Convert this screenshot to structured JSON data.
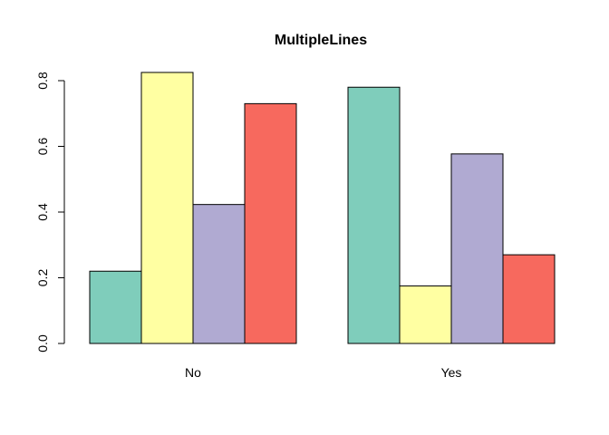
{
  "chart_data": {
    "type": "bar",
    "title": "MultipleLines",
    "xlabel": "",
    "ylabel": "",
    "categories": [
      "No",
      "Yes"
    ],
    "series": [
      {
        "values": [
          0.22,
          0.78
        ],
        "color": "#7FCDBB"
      },
      {
        "values": [
          0.825,
          0.175
        ],
        "color": "#FFFFA2"
      },
      {
        "values": [
          0.423,
          0.577
        ],
        "color": "#B0AAD2"
      },
      {
        "values": [
          0.73,
          0.27
        ],
        "color": "#F7695E"
      }
    ],
    "yticks": [
      "0.0",
      "0.2",
      "0.4",
      "0.6",
      "0.8"
    ],
    "ylim": [
      0,
      0.8
    ],
    "grid": false,
    "legend": "none"
  }
}
